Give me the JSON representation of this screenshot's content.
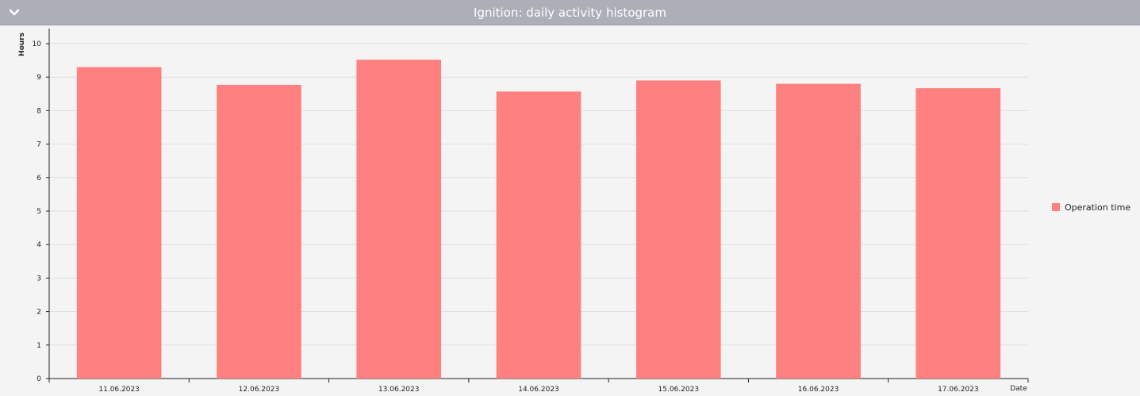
{
  "header": {
    "title": "Ignition: daily activity histogram",
    "collapse_icon": "chevron-down-icon"
  },
  "colors": {
    "header_bg": "#acafb8",
    "bar": "#ff8080",
    "grid": "#dddddd",
    "axis": "#222222"
  },
  "chart_data": {
    "type": "bar",
    "categories": [
      "11.06.2023",
      "12.06.2023",
      "13.06.2023",
      "14.06.2023",
      "15.06.2023",
      "16.06.2023",
      "17.06.2023"
    ],
    "series": [
      {
        "name": "Operation time",
        "values": [
          9.3,
          8.77,
          9.52,
          8.57,
          8.9,
          8.8,
          8.67
        ]
      }
    ],
    "xlabel": "Date",
    "ylabel": "Hours",
    "ylim": [
      0,
      10.45
    ],
    "yticks": [
      0,
      1,
      2,
      3,
      4,
      5,
      6,
      7,
      8,
      9,
      10
    ],
    "grid": true,
    "legend_position": "right"
  }
}
